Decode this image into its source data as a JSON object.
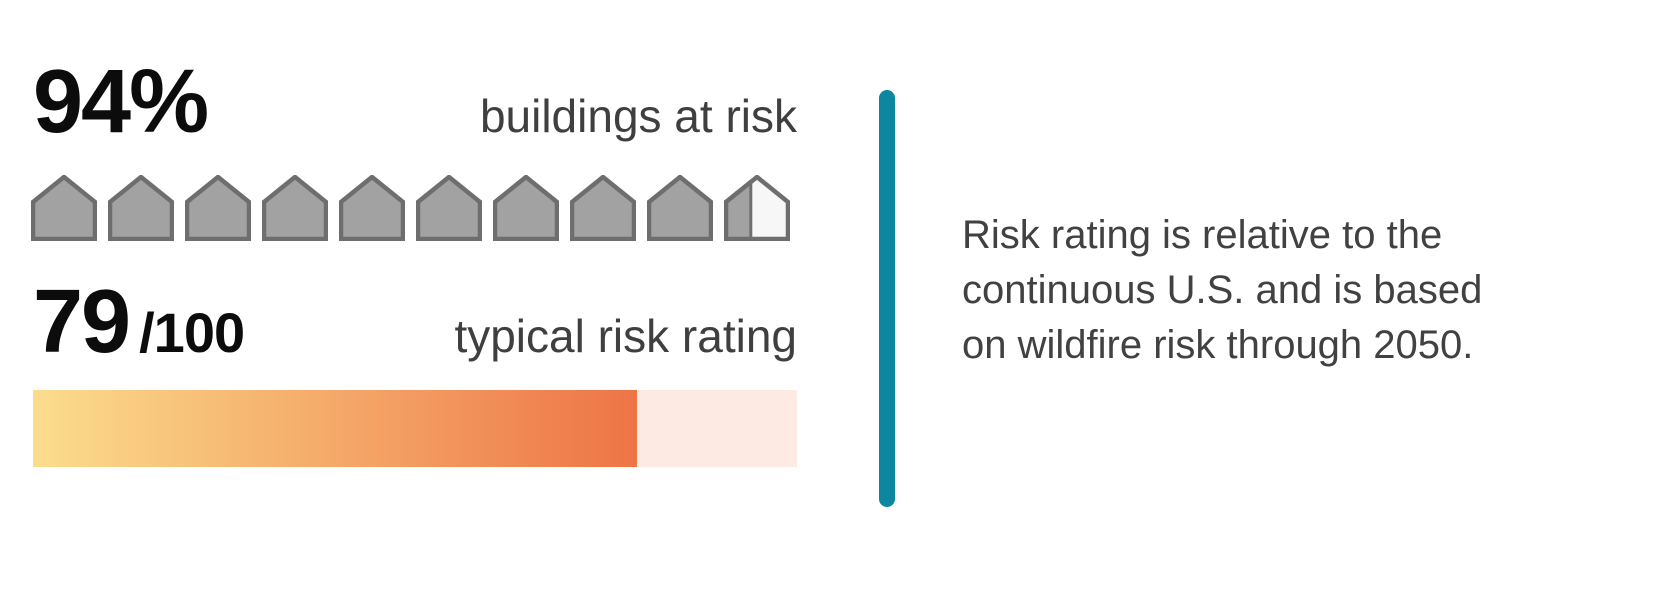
{
  "left_panel": {
    "buildings_stat": {
      "value": "94%",
      "label": "buildings at risk"
    },
    "risk_stat": {
      "value": "79",
      "suffix": "/100",
      "label": "typical risk rating"
    }
  },
  "note": {
    "lines": [
      "Risk rating is relative to the",
      "continuous U.S. and is based",
      "on wildfire risk through 2050."
    ]
  },
  "colors": {
    "accent_teal": "#0d87a0",
    "number_text": "#0c0c0c",
    "label_text": "#3f3f3f",
    "note_text": "#414141",
    "house_fill": "#a2a2a2",
    "house_stroke": "#6e6e6e",
    "house_empty_fill": "#f7f7f7",
    "bar_gradient_start": "#fbdd8d",
    "bar_gradient_end": "#ee7446",
    "bar_track": "#fdeae3"
  },
  "chart_data": [
    {
      "type": "pictograph",
      "title": "buildings at risk",
      "value_label": "94%",
      "value_percent": 94,
      "icon": "house",
      "icon_count": 10,
      "filled_icons": 9.4
    },
    {
      "type": "bar",
      "title": "typical risk rating",
      "value": 79,
      "max": 100,
      "value_label": "79 /100",
      "fill_style": "yellow-to-orange-gradient",
      "legend": "none",
      "orientation": "horizontal"
    }
  ]
}
